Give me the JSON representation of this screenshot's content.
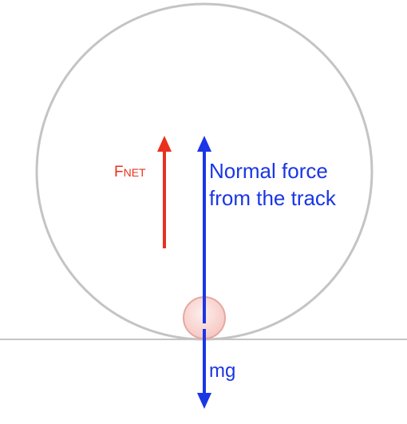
{
  "diagram": {
    "labels": {
      "net_force_main": "F",
      "net_force_sub": "NET",
      "normal_force_line1": "Normal force",
      "normal_force_line2": "from the track",
      "gravity": "mg"
    },
    "colors": {
      "loop": "#c4c4c4",
      "ground": "#c4c4c4",
      "net_force": "#e8321e",
      "normal_force": "#1a36e6",
      "gravity": "#1a36e6",
      "ball_fill": "#f6c9c4",
      "ball_stroke": "#e7a7a1"
    }
  }
}
